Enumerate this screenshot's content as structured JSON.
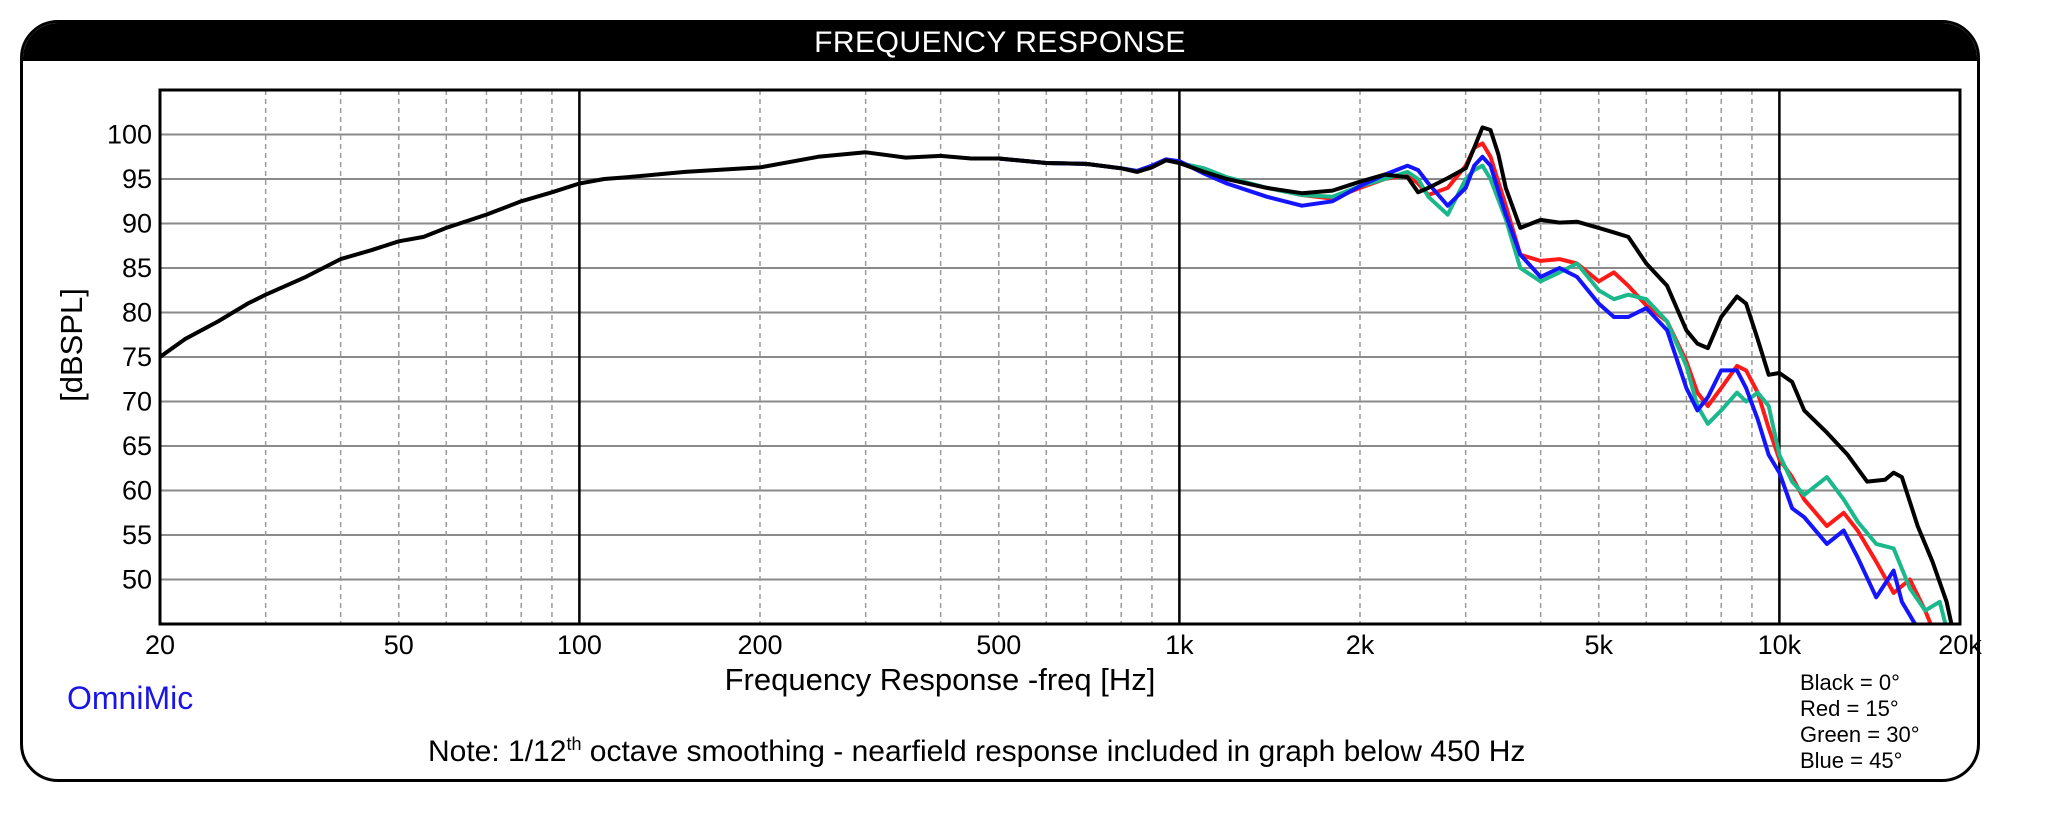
{
  "title": "FREQUENCY RESPONSE",
  "brand": "OmniMic",
  "note": {
    "prefix": "Note: 1/12",
    "superscript": "th",
    "suffix": " octave smoothing - nearfield response included in graph below 450 Hz"
  },
  "legend": [
    {
      "label": "Black = 0°",
      "color": "#000000"
    },
    {
      "label": "Red = 15°",
      "color": "#ff1a1a"
    },
    {
      "label": "Green = 30°",
      "color": "#1ab88a"
    },
    {
      "label": "Blue = 45°",
      "color": "#1414ff"
    }
  ],
  "chart_data": {
    "type": "line",
    "xlabel": "Frequency Response -freq [Hz]",
    "ylabel": "[dBSPL]",
    "x_scale": "log",
    "xlim": [
      20,
      20000
    ],
    "ylim": [
      45,
      105
    ],
    "x_ticks": [
      {
        "value": 20,
        "label": "20"
      },
      {
        "value": 50,
        "label": "50"
      },
      {
        "value": 100,
        "label": "100"
      },
      {
        "value": 200,
        "label": "200"
      },
      {
        "value": 500,
        "label": "500"
      },
      {
        "value": 1000,
        "label": "1k"
      },
      {
        "value": 2000,
        "label": "2k"
      },
      {
        "value": 5000,
        "label": "5k"
      },
      {
        "value": 10000,
        "label": "10k"
      },
      {
        "value": 20000,
        "label": "20k"
      }
    ],
    "y_ticks": [
      100,
      95,
      90,
      85,
      80,
      75,
      70,
      65,
      60,
      55,
      50
    ],
    "grid": true,
    "legend_position": "bottom-right",
    "series": [
      {
        "name": "Black = 0°",
        "color": "#000000",
        "x": [
          20,
          22,
          25,
          28,
          30,
          35,
          40,
          45,
          50,
          55,
          60,
          70,
          80,
          90,
          100,
          110,
          120,
          150,
          200,
          250,
          300,
          350,
          400,
          450,
          500,
          600,
          700,
          800,
          850,
          900,
          950,
          1000,
          1100,
          1200,
          1400,
          1600,
          1800,
          2000,
          2200,
          2400,
          2500,
          2600,
          2800,
          3000,
          3100,
          3200,
          3300,
          3400,
          3500,
          3700,
          4000,
          4300,
          4600,
          5000,
          5300,
          5600,
          6000,
          6500,
          7000,
          7300,
          7600,
          8000,
          8500,
          8800,
          9200,
          9600,
          10000,
          10500,
          11000,
          12000,
          13000,
          14000,
          15000,
          15500,
          16000,
          17000,
          18000,
          19000,
          19500
        ],
        "y": [
          75,
          77,
          79,
          81,
          82,
          84,
          86,
          87,
          88,
          88.5,
          89.5,
          91,
          92.5,
          93.5,
          94.5,
          95,
          95.2,
          95.8,
          96.3,
          97.5,
          98,
          97.4,
          97.6,
          97.3,
          97.3,
          96.8,
          96.7,
          96.2,
          95.8,
          96.3,
          97.1,
          96.8,
          95.8,
          95,
          94,
          93.4,
          93.7,
          94.7,
          95.5,
          95.2,
          93.5,
          94,
          95.1,
          96.2,
          98.5,
          100.8,
          100.5,
          97.8,
          94,
          89.5,
          90.4,
          90.1,
          90.2,
          89.5,
          89,
          88.5,
          85.5,
          83,
          78,
          76.5,
          76,
          79.5,
          81.8,
          81,
          77,
          73,
          73.2,
          72.2,
          69,
          66.5,
          64,
          61,
          61.2,
          62,
          61.5,
          56,
          52,
          47.5,
          44
        ]
      },
      {
        "name": "Red = 15°",
        "color": "#ff1a1a",
        "x": [
          500,
          600,
          700,
          800,
          850,
          900,
          950,
          1000,
          1100,
          1200,
          1400,
          1600,
          1800,
          2000,
          2200,
          2400,
          2500,
          2600,
          2800,
          3000,
          3100,
          3200,
          3300,
          3500,
          3700,
          4000,
          4300,
          4600,
          5000,
          5300,
          5600,
          6000,
          6500,
          7000,
          7300,
          7600,
          8000,
          8500,
          8800,
          9200,
          9600,
          10000,
          10500,
          11000,
          12000,
          12800,
          13500,
          14500,
          15500,
          16500,
          17500,
          18000
        ],
        "y": [
          97.3,
          96.8,
          96.7,
          96.2,
          95.9,
          96.5,
          97.2,
          96.8,
          95.8,
          95,
          94,
          93.2,
          92.8,
          94,
          95,
          95.5,
          94.5,
          93.2,
          94,
          96.5,
          98.5,
          99,
          97.5,
          92,
          86.5,
          85.8,
          86,
          85.5,
          83.5,
          84.5,
          83,
          80.8,
          79,
          74.5,
          71,
          69.5,
          71.5,
          74,
          73.5,
          71,
          67,
          63.5,
          61.5,
          59,
          56,
          57.5,
          55.5,
          52,
          48.5,
          50,
          46.5,
          44.5
        ]
      },
      {
        "name": "Green = 30°",
        "color": "#1ab88a",
        "x": [
          500,
          600,
          700,
          800,
          850,
          900,
          950,
          1000,
          1100,
          1200,
          1400,
          1600,
          1800,
          2000,
          2200,
          2400,
          2500,
          2600,
          2800,
          3000,
          3100,
          3200,
          3300,
          3500,
          3700,
          4000,
          4300,
          4600,
          5000,
          5300,
          5600,
          6000,
          6500,
          7000,
          7300,
          7600,
          8000,
          8500,
          8800,
          9200,
          9600,
          10000,
          10500,
          11000,
          12000,
          12800,
          13500,
          14500,
          15500,
          16500,
          17500,
          18500,
          19000
        ],
        "y": [
          97.3,
          96.8,
          96.7,
          96.2,
          95.9,
          96.5,
          97.2,
          96.8,
          96.2,
          95.2,
          94,
          93.2,
          93,
          94.2,
          95,
          95.8,
          95,
          93,
          91,
          95,
          96,
          96.5,
          95,
          90.5,
          85,
          83.5,
          84.5,
          85.5,
          82.5,
          81.5,
          82,
          81.5,
          79,
          74,
          69.5,
          67.5,
          69,
          71,
          70,
          71,
          69.5,
          64,
          61,
          59.5,
          61.5,
          59,
          56.5,
          54,
          53.5,
          49,
          46.5,
          47.5,
          44.5
        ]
      },
      {
        "name": "Blue = 45°",
        "color": "#1414ff",
        "x": [
          500,
          600,
          700,
          800,
          850,
          900,
          950,
          1000,
          1100,
          1200,
          1400,
          1600,
          1800,
          2000,
          2200,
          2400,
          2500,
          2600,
          2800,
          3000,
          3100,
          3200,
          3300,
          3500,
          3700,
          4000,
          4300,
          4600,
          5000,
          5300,
          5600,
          6000,
          6500,
          7000,
          7300,
          7600,
          8000,
          8500,
          8800,
          9200,
          9600,
          10000,
          10500,
          11000,
          12000,
          12800,
          13500,
          14500,
          15500,
          16000,
          17000
        ],
        "y": [
          97.3,
          96.8,
          96.7,
          96.2,
          95.9,
          96.5,
          97.2,
          97,
          95.6,
          94.5,
          93,
          92,
          92.5,
          94.2,
          95.5,
          96.5,
          96,
          94.5,
          92,
          94,
          96.5,
          97.5,
          96.5,
          91,
          86.5,
          84,
          85,
          84,
          81,
          79.5,
          79.5,
          80.5,
          78,
          71.5,
          69,
          70.5,
          73.5,
          73.5,
          71.5,
          68,
          64,
          62,
          58,
          57,
          54,
          55.5,
          52.5,
          48,
          51,
          47.5,
          44.5
        ]
      }
    ]
  }
}
